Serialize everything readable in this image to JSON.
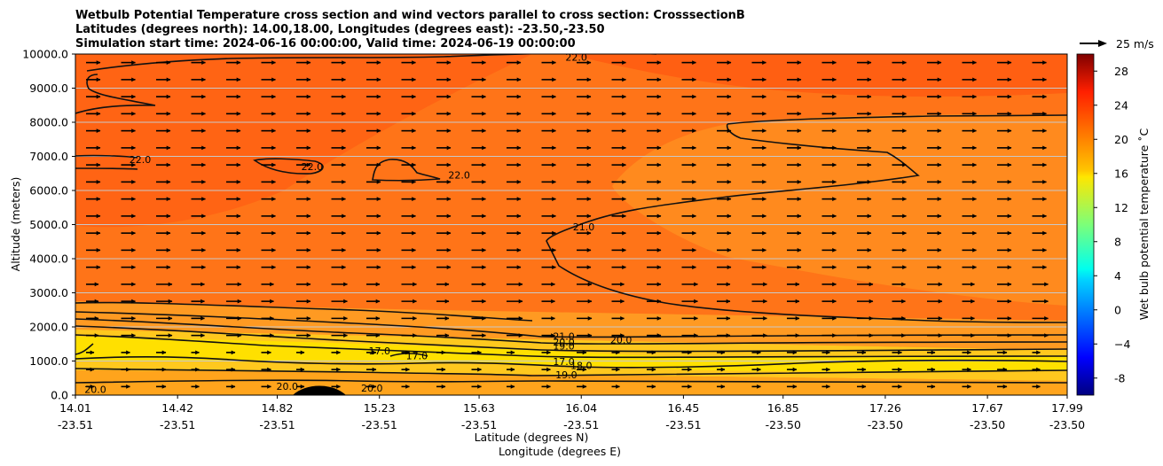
{
  "chart_data": {
    "type": "heatmap",
    "title_lines": [
      "Wetbulb Potential Temperature cross section and wind vectors parallel to cross section: CrosssectionB",
      "Latitudes (degrees north): 14.00,18.00, Longitudes (degrees east): -23.50,-23.50",
      "Simulation start time: 2024-06-16 00:00:00, Valid time: 2024-06-19 00:00:00"
    ],
    "xlabel": "Latitude (degrees N)",
    "xlabel2": "Longitude (degrees E)",
    "ylabel": "Altitude (meters)",
    "xlim": [
      14.01,
      17.99
    ],
    "ylim": [
      0,
      10000
    ],
    "x_ticks": [
      {
        "lat": "14.01",
        "lon": "-23.51",
        "value": 14.01
      },
      {
        "lat": "14.42",
        "lon": "-23.51",
        "value": 14.42
      },
      {
        "lat": "14.82",
        "lon": "-23.51",
        "value": 14.82
      },
      {
        "lat": "15.23",
        "lon": "-23.51",
        "value": 15.23
      },
      {
        "lat": "15.63",
        "lon": "-23.51",
        "value": 15.63
      },
      {
        "lat": "16.04",
        "lon": "-23.51",
        "value": 16.04
      },
      {
        "lat": "16.45",
        "lon": "-23.51",
        "value": 16.45
      },
      {
        "lat": "16.85",
        "lon": "-23.50",
        "value": 16.85
      },
      {
        "lat": "17.26",
        "lon": "-23.50",
        "value": 17.26
      },
      {
        "lat": "17.67",
        "lon": "-23.50",
        "value": 17.67
      },
      {
        "lat": "17.99",
        "lon": "-23.50",
        "value": 17.99
      }
    ],
    "y_ticks": [
      {
        "label": "0.0",
        "value": 0
      },
      {
        "label": "1000.0",
        "value": 1000
      },
      {
        "label": "2000.0",
        "value": 2000
      },
      {
        "label": "3000.0",
        "value": 3000
      },
      {
        "label": "4000.0",
        "value": 4000
      },
      {
        "label": "5000.0",
        "value": 5000
      },
      {
        "label": "6000.0",
        "value": 6000
      },
      {
        "label": "7000.0",
        "value": 7000
      },
      {
        "label": "8000.0",
        "value": 8000
      },
      {
        "label": "9000.0",
        "value": 9000
      },
      {
        "label": "10000.0",
        "value": 10000
      }
    ],
    "colorbar": {
      "label": "Wet bulb potential temperature ˚C",
      "range": [
        -10,
        30
      ],
      "colormap": "jet",
      "ticks": [
        "-8",
        "−4",
        "0",
        "4",
        "8",
        "12",
        "16",
        "20",
        "24",
        "28"
      ],
      "tick_values": [
        -8,
        -4,
        0,
        4,
        8,
        12,
        16,
        20,
        24,
        28
      ]
    },
    "quiver_key": {
      "label": "25 m/s",
      "value": 25
    },
    "contour_labels": [
      {
        "text": "22.0",
        "lat": 14.27,
        "alt": 6800
      },
      {
        "text": "22.0",
        "lat": 14.96,
        "alt": 6600
      },
      {
        "text": "22.0",
        "lat": 15.55,
        "alt": 6350
      },
      {
        "text": "22.0",
        "lat": 16.02,
        "alt": 9800
      },
      {
        "text": "21.0",
        "lat": 16.05,
        "alt": 4830
      },
      {
        "text": "21.0",
        "lat": 15.97,
        "alt": 1620
      },
      {
        "text": "20.0",
        "lat": 15.97,
        "alt": 1460
      },
      {
        "text": "19.0",
        "lat": 15.97,
        "alt": 1340
      },
      {
        "text": "17.0",
        "lat": 15.97,
        "alt": 880
      },
      {
        "text": "18.0",
        "lat": 16.04,
        "alt": 760
      },
      {
        "text": "19.0",
        "lat": 15.98,
        "alt": 500
      },
      {
        "text": "17.0",
        "lat": 15.23,
        "alt": 1200
      },
      {
        "text": "17.0",
        "lat": 15.38,
        "alt": 1050
      },
      {
        "text": "20.0",
        "lat": 14.09,
        "alt": 60
      },
      {
        "text": "20.0",
        "lat": 14.86,
        "alt": 150
      },
      {
        "text": "20.0",
        "lat": 15.2,
        "alt": 100
      },
      {
        "text": "20.0",
        "lat": 16.2,
        "alt": 1520
      }
    ],
    "series": [
      {
        "name": "wetbulb_potential_temperature_C",
        "summary": "approximately 19–22 ˚C across the section; warmest (~22) near 6000–10000 m at low latitudes, coolest (~16–17) band near 1000–1500 m"
      },
      {
        "name": "wind_parallel_to_section",
        "summary": "mostly positive (northward) flow, ~5–10 m/s at mid-levels, weaker near surface"
      }
    ]
  }
}
